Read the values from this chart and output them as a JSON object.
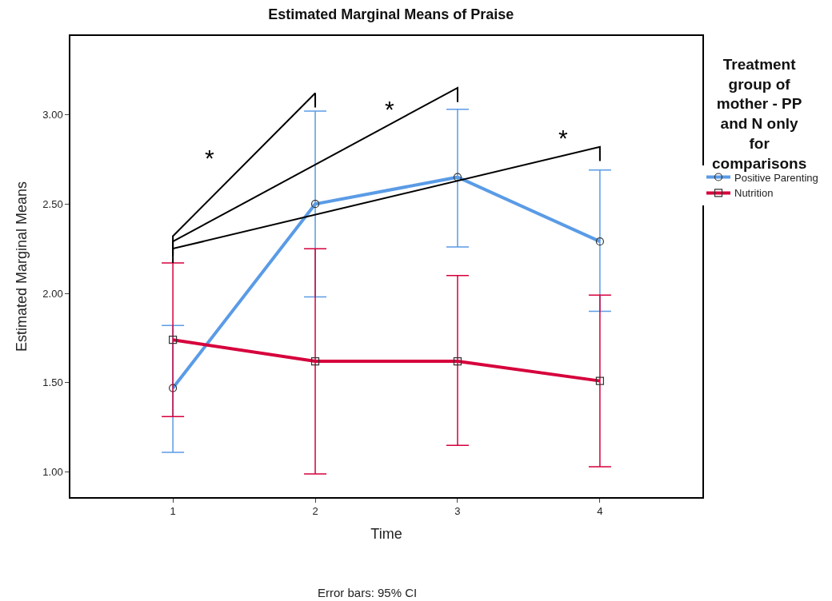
{
  "chart_data": {
    "type": "line",
    "title": "Estimated Marginal Means of Praise",
    "xlabel": "Time",
    "ylabel": "Estimated Marginal Means",
    "legend_title": "Treatment group of mother - PP and N only for comparisons",
    "categories": [
      "1",
      "2",
      "3",
      "4"
    ],
    "series": [
      {
        "name": "Positive Parenting",
        "color": "#5a9be6",
        "marker": "circle",
        "values": [
          1.47,
          2.5,
          2.65,
          2.29
        ],
        "errors": [
          [
            1.11,
            1.82
          ],
          [
            1.98,
            3.02
          ],
          [
            2.26,
            3.03
          ],
          [
            1.9,
            2.69
          ]
        ]
      },
      {
        "name": "Nutrition",
        "color": "#d6003c",
        "marker": "square",
        "values": [
          1.74,
          1.62,
          1.62,
          1.51
        ],
        "errors": [
          [
            1.31,
            2.17
          ],
          [
            0.99,
            2.25
          ],
          [
            1.15,
            2.1
          ],
          [
            1.03,
            1.99
          ]
        ]
      },
      {
        "color": "#000000",
        "marker": "none",
        "x": [
          "1",
          "1",
          "2",
          "2"
        ],
        "values": [
          2.24,
          2.32,
          3.12,
          3.04
        ]
      },
      {
        "color": "#000000",
        "marker": "none",
        "x": [
          "1",
          "1",
          "3",
          "3"
        ],
        "values": [
          2.21,
          2.29,
          3.15,
          3.07
        ]
      },
      {
        "color": "#000000",
        "marker": "none",
        "x": [
          "1",
          "1",
          "4",
          "4"
        ],
        "values": [
          2.17,
          2.25,
          2.82,
          2.74
        ]
      }
    ],
    "ylim": [
      0.86,
      3.44
    ],
    "yticks": [
      {
        "value": 1,
        "label": "1.00"
      },
      {
        "value": 1.5,
        "label": "1.50"
      },
      {
        "value": 2,
        "label": "2.00"
      },
      {
        "value": 2.5,
        "label": "2.50"
      },
      {
        "value": 3,
        "label": "3.00"
      }
    ],
    "legend": "right",
    "annotations": [
      "*",
      "*",
      "*",
      "Error bars: 95% CI"
    ]
  }
}
